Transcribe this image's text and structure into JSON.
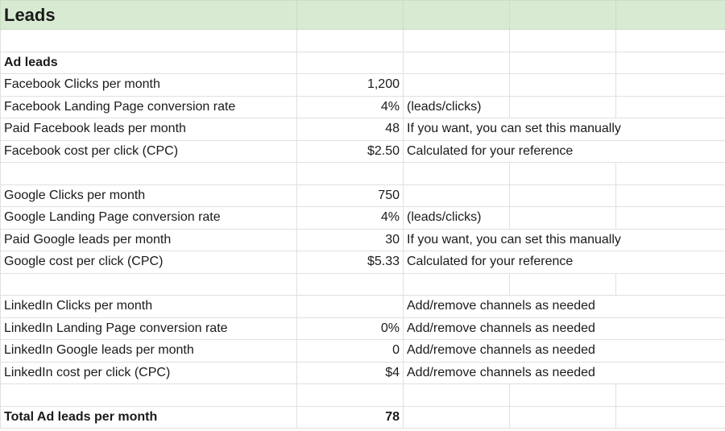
{
  "sheet": {
    "title": "Leads",
    "section_ad_leads": "Ad leads",
    "rows": [
      {
        "label": "Facebook Clicks per month",
        "value": "1,200",
        "note": ""
      },
      {
        "label": "Facebook Landing Page conversion rate",
        "value": "4%",
        "note": "(leads/clicks)"
      },
      {
        "label": "Paid Facebook leads per month",
        "value": "48",
        "note": "If you want, you can set this manually"
      },
      {
        "label": "Facebook cost per click (CPC)",
        "value": "$2.50",
        "note": "Calculated for your reference"
      },
      {
        "label": "Google Clicks per month",
        "value": "750",
        "note": ""
      },
      {
        "label": "Google Landing Page conversion rate",
        "value": "4%",
        "note": "(leads/clicks)"
      },
      {
        "label": "Paid Google leads per month",
        "value": "30",
        "note": "If you want, you can set this manually"
      },
      {
        "label": "Google cost per click (CPC)",
        "value": "$5.33",
        "note": "Calculated for your reference"
      },
      {
        "label": "LinkedIn Clicks per month",
        "value": "",
        "note": "Add/remove channels as needed"
      },
      {
        "label": "LinkedIn Landing Page conversion rate",
        "value": "0%",
        "note": "Add/remove channels as needed"
      },
      {
        "label": "LinkedIn Google leads per month",
        "value": "0",
        "note": "Add/remove channels as needed"
      },
      {
        "label": "LinkedIn cost per click (CPC)",
        "value": "$4",
        "note": "Add/remove channels as needed"
      }
    ],
    "total": {
      "label": "Total Ad leads per month",
      "value": "78"
    }
  }
}
